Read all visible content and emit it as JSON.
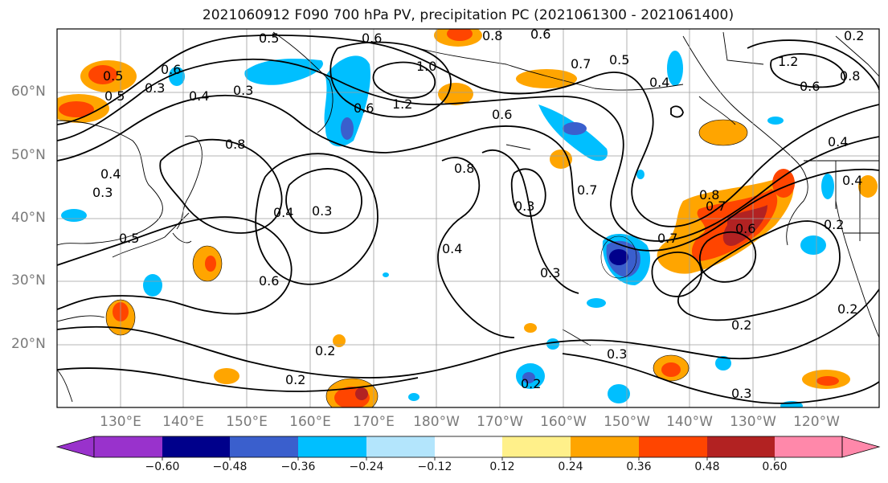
{
  "title": "2021060912 F090 700 hPa PV, precipitation PC (2021061300 - 2021061400)",
  "lat_labels": [
    "60°N",
    "50°N",
    "40°N",
    "30°N",
    "20°N"
  ],
  "lon_labels": [
    "130°E",
    "140°E",
    "150°E",
    "160°E",
    "170°E",
    "180°W",
    "170°W",
    "160°W",
    "150°W",
    "140°W",
    "130°W",
    "120°W"
  ],
  "colorbar": {
    "colors": [
      "#9932cc",
      "#00008b",
      "#3a5fcd",
      "#00bfff",
      "#b3e5fc",
      "#ffffff",
      "#fff08a",
      "#ffa500",
      "#ff4500",
      "#b22222",
      "#ff88aa"
    ],
    "ticks": [
      "−0.60",
      "−0.48",
      "−0.36",
      "−0.24",
      "−0.12",
      "0.12",
      "0.24",
      "0.36",
      "0.48",
      "0.60"
    ]
  },
  "contour_labels": [
    "0.5",
    "0.6",
    "0.8",
    "0.6",
    "0.3",
    "1.0",
    "0.7",
    "0.5",
    "0.4",
    "1.2",
    "0.6",
    "0.5",
    "0.8",
    "0.6",
    "0.4",
    "0.3",
    "1.2",
    "0.6",
    "0.8",
    "0.4",
    "0.3",
    "0.8",
    "0.3",
    "0.7",
    "0.5",
    "0.4",
    "0.3",
    "0.4",
    "0.8",
    "0.7",
    "0.6",
    "0.7",
    "0.2",
    "0.6",
    "0.3",
    "0.4",
    "0.2",
    "0.2",
    "0.2",
    "0.3",
    "0.2",
    "0.3",
    "0.2",
    "0.2",
    "0.5",
    "0.4",
    "0.6"
  ]
}
